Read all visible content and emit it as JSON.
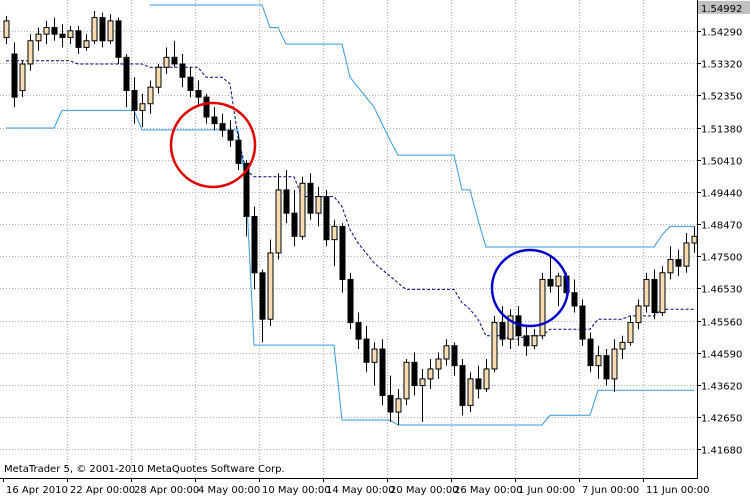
{
  "chart_data": {
    "type": "candlestick",
    "footer": "MetaTrader 5, © 2001-2010 MetaQuotes Software Corp.",
    "price_label": 1.54992,
    "ylim": [
      1.4081,
      1.5523
    ],
    "yticks": [
      {
        "value": 1.5429,
        "label": "1.54290"
      },
      {
        "value": 1.5332,
        "label": "1.53320"
      },
      {
        "value": 1.5235,
        "label": "1.52350"
      },
      {
        "value": 1.5138,
        "label": "1.51380"
      },
      {
        "value": 1.5041,
        "label": "1.50410"
      },
      {
        "value": 1.4944,
        "label": "1.49440"
      },
      {
        "value": 1.4847,
        "label": "1.48470"
      },
      {
        "value": 1.475,
        "label": "1.47500"
      },
      {
        "value": 1.4653,
        "label": "1.46530"
      },
      {
        "value": 1.4556,
        "label": "1.45560"
      },
      {
        "value": 1.4459,
        "label": "1.44590"
      },
      {
        "value": 1.4362,
        "label": "1.43620"
      },
      {
        "value": 1.4265,
        "label": "1.42650"
      },
      {
        "value": 1.4168,
        "label": "1.41680"
      }
    ],
    "grid": true,
    "up_color": "#f5deb3",
    "down_color": "#000000",
    "categories": [
      "16 Apr 2010",
      null,
      null,
      null,
      null,
      null,
      null,
      null,
      "22 Apr 00:00",
      null,
      null,
      null,
      null,
      null,
      null,
      null,
      "28 Apr 00:00",
      null,
      null,
      null,
      null,
      null,
      null,
      null,
      "4 May 00:00",
      null,
      null,
      null,
      null,
      null,
      null,
      null,
      "10 May 00:00",
      null,
      null,
      null,
      null,
      null,
      null,
      null,
      "14 May 00:00",
      null,
      null,
      null,
      null,
      null,
      null,
      null,
      "20 May 00:00",
      null,
      null,
      null,
      null,
      null,
      null,
      null,
      "26 May 00:00",
      null,
      null,
      null,
      null,
      null,
      null,
      null,
      "1 Jun 00:00",
      null,
      null,
      null,
      null,
      null,
      null,
      null,
      "7 Jun 00:00",
      null,
      null,
      null,
      null,
      null,
      null,
      null,
      "11 Jun 00:00",
      null,
      null,
      null,
      null,
      null,
      null
    ],
    "open": [
      1.541,
      1.536,
      1.525,
      1.533,
      1.54,
      1.542,
      1.544,
      1.542,
      1.541,
      1.543,
      1.538,
      1.54,
      1.547,
      1.54,
      1.546,
      1.535,
      1.525,
      1.519,
      1.521,
      1.526,
      1.532,
      1.535,
      1.533,
      1.529,
      1.525,
      1.523,
      1.517,
      1.515,
      1.513,
      1.51,
      1.503,
      1.487,
      1.47,
      1.456,
      1.476,
      1.495,
      1.488,
      1.481,
      1.497,
      1.488,
      1.493,
      1.48,
      1.484,
      1.468,
      1.455,
      1.45,
      1.443,
      1.447,
      1.433,
      1.428,
      1.432,
      1.443,
      1.436,
      1.438,
      1.441,
      1.444,
      1.448,
      1.442,
      1.43,
      1.438,
      1.435,
      1.441,
      1.455,
      1.45,
      1.457,
      1.451,
      1.448,
      1.451,
      1.468,
      1.466,
      1.469,
      1.464,
      1.46,
      1.45,
      1.442,
      1.445,
      1.438,
      1.447,
      1.449,
      1.455,
      1.46,
      1.468,
      1.458,
      1.47,
      1.474,
      1.472,
      1.479
    ],
    "high": [
      1.5475,
      1.5395,
      1.534,
      1.542,
      1.544,
      1.546,
      1.547,
      1.545,
      1.5445,
      1.5445,
      1.542,
      1.549,
      1.5485,
      1.548,
      1.547,
      1.536,
      1.529,
      1.524,
      1.528,
      1.533,
      1.538,
      1.54,
      1.536,
      1.532,
      1.528,
      1.524,
      1.52,
      1.518,
      1.516,
      1.512,
      1.504,
      1.49,
      1.471,
      1.48,
      1.5,
      1.501,
      1.495,
      1.499,
      1.5,
      1.496,
      1.495,
      1.486,
      1.485,
      1.47,
      1.458,
      1.454,
      1.449,
      1.45,
      1.439,
      1.435,
      1.444,
      1.446,
      1.441,
      1.444,
      1.446,
      1.45,
      1.449,
      1.444,
      1.44,
      1.442,
      1.444,
      1.457,
      1.46,
      1.459,
      1.46,
      1.454,
      1.453,
      1.47,
      1.475,
      1.47,
      1.47,
      1.468,
      1.462,
      1.452,
      1.448,
      1.447,
      1.45,
      1.451,
      1.457,
      1.462,
      1.47,
      1.471,
      1.472,
      1.478,
      1.477,
      1.482,
      1.484
    ],
    "low": [
      1.539,
      1.52,
      1.523,
      1.531,
      1.537,
      1.539,
      1.54,
      1.538,
      1.539,
      1.536,
      1.537,
      1.539,
      1.538,
      1.539,
      1.533,
      1.52,
      1.515,
      1.514,
      1.518,
      1.524,
      1.53,
      1.532,
      1.526,
      1.523,
      1.52,
      1.515,
      1.513,
      1.511,
      1.508,
      1.501,
      1.481,
      1.465,
      1.449,
      1.454,
      1.474,
      1.485,
      1.478,
      1.48,
      1.486,
      1.484,
      1.478,
      1.472,
      1.464,
      1.453,
      1.447,
      1.44,
      1.436,
      1.43,
      1.425,
      1.424,
      1.43,
      1.433,
      1.425,
      1.435,
      1.438,
      1.442,
      1.439,
      1.427,
      1.428,
      1.432,
      1.434,
      1.44,
      1.448,
      1.447,
      1.448,
      1.445,
      1.447,
      1.45,
      1.464,
      1.46,
      1.462,
      1.458,
      1.448,
      1.44,
      1.438,
      1.436,
      1.434,
      1.444,
      1.448,
      1.453,
      1.458,
      1.456,
      1.457,
      1.468,
      1.469,
      1.47,
      1.476
    ],
    "close": [
      1.546,
      1.523,
      1.533,
      1.54,
      1.542,
      1.544,
      1.542,
      1.541,
      1.543,
      1.538,
      1.54,
      1.547,
      1.54,
      1.546,
      1.535,
      1.525,
      1.519,
      1.521,
      1.526,
      1.532,
      1.535,
      1.533,
      1.529,
      1.525,
      1.523,
      1.517,
      1.515,
      1.513,
      1.51,
      1.503,
      1.487,
      1.47,
      1.456,
      1.476,
      1.495,
      1.488,
      1.481,
      1.497,
      1.488,
      1.493,
      1.48,
      1.484,
      1.468,
      1.455,
      1.45,
      1.443,
      1.447,
      1.433,
      1.428,
      1.432,
      1.443,
      1.436,
      1.438,
      1.441,
      1.444,
      1.448,
      1.442,
      1.43,
      1.438,
      1.435,
      1.441,
      1.455,
      1.45,
      1.457,
      1.451,
      1.448,
      1.451,
      1.468,
      1.466,
      1.469,
      1.464,
      1.46,
      1.45,
      1.442,
      1.445,
      1.438,
      1.447,
      1.449,
      1.455,
      1.46,
      1.468,
      1.458,
      1.47,
      1.474,
      1.472,
      1.479,
      1.481
    ],
    "lines": [
      {
        "color": "#3399dd",
        "dashed": false,
        "values": [
          null,
          null,
          null,
          null,
          null,
          null,
          null,
          null,
          null,
          null,
          null,
          null,
          null,
          null,
          null,
          null,
          null,
          null,
          1.5508,
          1.5508,
          1.5508,
          1.5508,
          1.5508,
          1.5508,
          1.5508,
          1.5508,
          1.5508,
          1.5508,
          1.5508,
          1.5508,
          1.5508,
          1.5508,
          1.5508,
          1.544,
          1.544,
          1.539,
          1.539,
          1.539,
          1.539,
          1.539,
          1.539,
          1.539,
          1.539,
          1.529,
          1.526,
          1.523,
          1.52,
          1.515,
          1.51,
          1.5055,
          1.5055,
          1.5055,
          1.5055,
          1.5055,
          1.5055,
          1.5055,
          1.5055,
          1.495,
          1.495,
          1.486,
          1.4778,
          1.4778,
          1.4778,
          1.4778,
          1.4778,
          1.4778,
          1.4778,
          1.4778,
          1.4778,
          1.4778,
          1.4778,
          1.4778,
          1.4778,
          1.4778,
          1.4778,
          1.4778,
          1.4778,
          1.4778,
          1.4778,
          1.4778,
          1.4778,
          1.4778,
          1.4814,
          1.484,
          1.484,
          1.484,
          1.484
        ]
      },
      {
        "color": "#3399dd",
        "dashed": false,
        "values": [
          1.5137,
          1.5137,
          1.5137,
          1.5137,
          1.5137,
          1.5137,
          1.5137,
          1.519,
          1.519,
          1.519,
          1.519,
          1.519,
          1.519,
          1.519,
          1.519,
          1.519,
          1.519,
          1.5131,
          1.5131,
          1.5131,
          1.5131,
          1.5131,
          1.5131,
          1.5131,
          1.5131,
          1.5131,
          1.5131,
          1.5131,
          1.5131,
          1.5131,
          1.4965,
          1.4482,
          1.4482,
          1.4482,
          1.4482,
          1.4482,
          1.4482,
          1.4482,
          1.4482,
          1.4482,
          1.4482,
          1.4482,
          1.4256,
          1.4256,
          1.4256,
          1.4256,
          1.4256,
          1.4256,
          1.4256,
          1.4241,
          1.4241,
          1.4241,
          1.4241,
          1.4241,
          1.4241,
          1.4241,
          1.4241,
          1.4241,
          1.4241,
          1.4241,
          1.4241,
          1.4241,
          1.4241,
          1.4241,
          1.4241,
          1.4241,
          1.4241,
          1.4241,
          1.427,
          1.427,
          1.427,
          1.427,
          1.427,
          1.427,
          1.4346,
          1.4346,
          1.4346,
          1.4346,
          1.4346,
          1.4346,
          1.4346,
          1.4346,
          1.4346,
          1.4346,
          1.4346,
          1.4346,
          1.4346
        ]
      },
      {
        "color": "#000080",
        "dashed": true,
        "values": [
          1.534,
          1.534,
          1.534,
          1.534,
          1.534,
          1.534,
          1.534,
          1.534,
          1.534,
          1.533,
          1.533,
          1.533,
          1.533,
          1.533,
          1.533,
          1.533,
          1.533,
          1.533,
          1.532,
          1.532,
          1.532,
          1.532,
          1.532,
          1.532,
          1.532,
          1.529,
          1.529,
          1.529,
          1.527,
          1.511,
          1.501,
          1.499,
          1.499,
          1.499,
          1.499,
          1.499,
          1.499,
          1.493,
          1.493,
          1.493,
          1.493,
          1.493,
          1.49,
          1.483,
          1.479,
          1.476,
          1.473,
          1.471,
          1.469,
          1.467,
          1.465,
          1.465,
          1.465,
          1.465,
          1.465,
          1.465,
          1.465,
          1.461,
          1.459,
          1.456,
          1.451,
          1.451,
          1.451,
          1.45,
          1.45,
          1.451,
          1.451,
          1.451,
          1.453,
          1.453,
          1.453,
          1.453,
          1.453,
          1.453,
          1.456,
          1.456,
          1.456,
          1.456,
          1.457,
          1.457,
          1.457,
          1.457,
          1.459,
          1.459,
          1.459,
          1.459,
          1.459
        ]
      }
    ]
  }
}
